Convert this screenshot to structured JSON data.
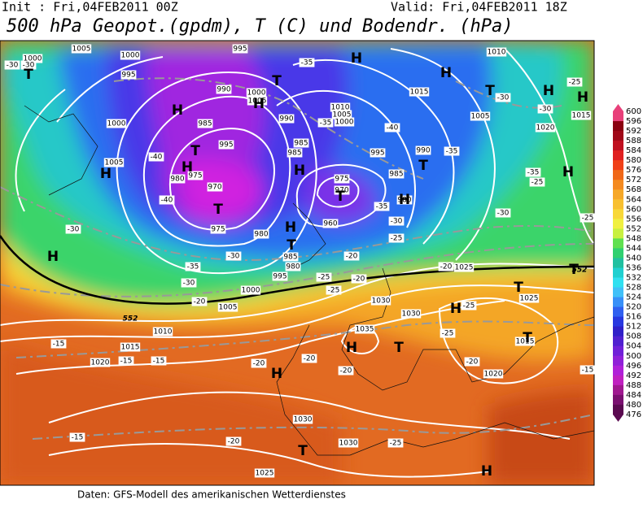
{
  "header": {
    "init": "Init : Fri,04FEB2011 00Z",
    "valid": "Valid: Fri,04FEB2011 18Z",
    "title": "500 hPa Geopot.(gpdm), T (C) und Bodendr. (hPa)"
  },
  "map": {
    "pressure_labels": [
      1000,
      1005,
      1000,
      995,
      995,
      990,
      1000,
      1005,
      1000,
      985,
      995,
      990,
      1010,
      1005,
      1000,
      985,
      985,
      995,
      990,
      1010,
      1015,
      1005,
      1020,
      1015,
      1005,
      980,
      975,
      970,
      975,
      970,
      985,
      980,
      960,
      975,
      980,
      985,
      980,
      995,
      1000,
      1005,
      1010,
      1015,
      1020,
      1025,
      1025,
      1030,
      1030,
      1035,
      1015,
      1020,
      1030,
      1030,
      1025
    ],
    "temperature_labels": [
      -30,
      -30,
      -35,
      -35,
      -40,
      -35,
      -30,
      -25,
      -30,
      -40,
      -35,
      -25,
      -40,
      -35,
      -30,
      -30,
      -25,
      -30,
      -25,
      -20,
      -35,
      -30,
      -30,
      -20,
      -25,
      -20,
      -25,
      -20,
      -25,
      -25,
      -20,
      -15,
      -15,
      -15,
      -15,
      -20,
      -20,
      -20,
      -15,
      -20,
      -25
    ],
    "centers": [
      "T",
      "H",
      "H",
      "T",
      "T",
      "H",
      "H",
      "H",
      "H",
      "T",
      "H",
      "H",
      "H",
      "T",
      "H",
      "T",
      "T",
      "H",
      "H",
      "T",
      "H",
      "T",
      "T",
      "H",
      "H",
      "T",
      "T",
      "H",
      "T",
      "H"
    ],
    "contour_labels": [
      552,
      552
    ]
  },
  "colorbar": {
    "labels": [
      600,
      596,
      592,
      588,
      584,
      580,
      576,
      572,
      568,
      564,
      560,
      556,
      552,
      548,
      544,
      540,
      536,
      532,
      528,
      524,
      520,
      516,
      512,
      508,
      504,
      500,
      496,
      492,
      488,
      484,
      480,
      476
    ]
  },
  "footer": "Daten: GFS-Modell des amerikanischen Wetterdienstes"
}
